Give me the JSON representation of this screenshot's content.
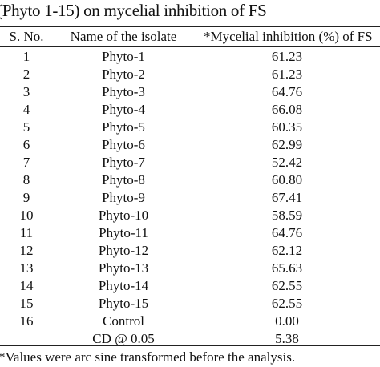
{
  "caption": "(Phyto 1-15) on mycelial inhibition of FS",
  "table": {
    "headers": [
      "S. No.",
      "Name of the isolate",
      "*Mycelial inhibition (%) of FS"
    ],
    "rows": [
      [
        "1",
        "Phyto-1",
        "61.23"
      ],
      [
        "2",
        "Phyto-2",
        "61.23"
      ],
      [
        "3",
        "Phyto-3",
        "64.76"
      ],
      [
        "4",
        "Phyto-4",
        "66.08"
      ],
      [
        "5",
        "Phyto-5",
        "60.35"
      ],
      [
        "6",
        "Phyto-6",
        "62.99"
      ],
      [
        "7",
        "Phyto-7",
        "52.42"
      ],
      [
        "8",
        "Phyto-8",
        "60.80"
      ],
      [
        "9",
        "Phyto-9",
        "67.41"
      ],
      [
        "10",
        "Phyto-10",
        "58.59"
      ],
      [
        "11",
        "Phyto-11",
        "64.76"
      ],
      [
        "12",
        "Phyto-12",
        "62.12"
      ],
      [
        "13",
        "Phyto-13",
        "65.63"
      ],
      [
        "14",
        "Phyto-14",
        "62.55"
      ],
      [
        "15",
        "Phyto-15",
        "62.55"
      ],
      [
        "16",
        "Control",
        "0.00"
      ],
      [
        "",
        "CD @ 0.05",
        "5.38"
      ]
    ]
  },
  "footnote": "*Values were arc sine transformed before the analysis."
}
